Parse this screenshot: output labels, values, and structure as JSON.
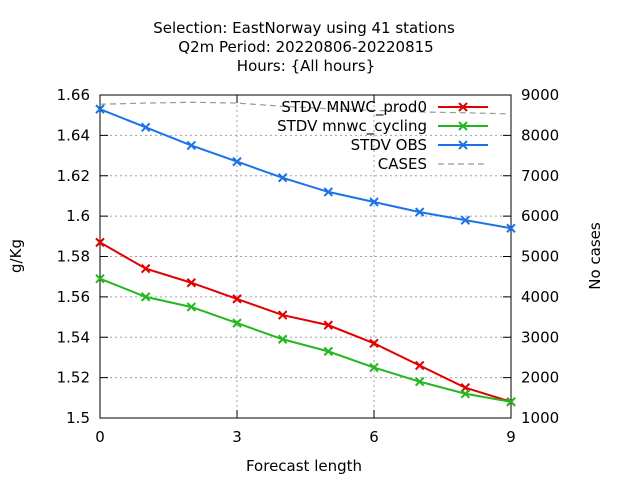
{
  "chart_data": {
    "type": "line",
    "title_lines": [
      "Selection: EastNorway using    41 stations",
      "Q2m   Period: 20220806-20220815",
      "Hours: {All hours}"
    ],
    "xlabel": "Forecast length",
    "ylabel": "g/Kg",
    "y2label": "No cases",
    "xlim": [
      0,
      9
    ],
    "ylim": [
      1.5,
      1.66
    ],
    "y2lim": [
      1000,
      9000
    ],
    "xticks": [
      0,
      3,
      6,
      9
    ],
    "yticks": [
      1.5,
      1.52,
      1.54,
      1.56,
      1.58,
      1.6,
      1.62,
      1.64,
      1.66
    ],
    "y2ticks": [
      1000,
      2000,
      3000,
      4000,
      5000,
      6000,
      7000,
      8000,
      9000
    ],
    "grid": true,
    "legend_position": "top-right",
    "x": [
      0,
      1,
      2,
      3,
      4,
      5,
      6,
      7,
      8,
      9
    ],
    "series": [
      {
        "name": "STDV MNWC_prod0",
        "color": "#e00000",
        "axis": "y1",
        "marker": "x",
        "values": [
          1.587,
          1.574,
          1.567,
          1.559,
          1.551,
          1.546,
          1.537,
          1.526,
          1.515,
          1.508
        ]
      },
      {
        "name": "STDV mnwc_cycling",
        "color": "#22b81e",
        "axis": "y1",
        "marker": "x",
        "values": [
          1.569,
          1.56,
          1.555,
          1.547,
          1.539,
          1.533,
          1.525,
          1.518,
          1.512,
          1.508
        ]
      },
      {
        "name": "STDV OBS",
        "color": "#1a73e8",
        "axis": "y1",
        "marker": "x",
        "values": [
          1.653,
          1.644,
          1.635,
          1.627,
          1.619,
          1.612,
          1.607,
          1.602,
          1.598,
          1.594
        ]
      },
      {
        "name": "CASES",
        "color": "#999999",
        "axis": "y2",
        "marker": "none",
        "dashed": true,
        "values": [
          8770,
          8800,
          8820,
          8800,
          8720,
          8660,
          8620,
          8580,
          8560,
          8530
        ]
      }
    ]
  }
}
